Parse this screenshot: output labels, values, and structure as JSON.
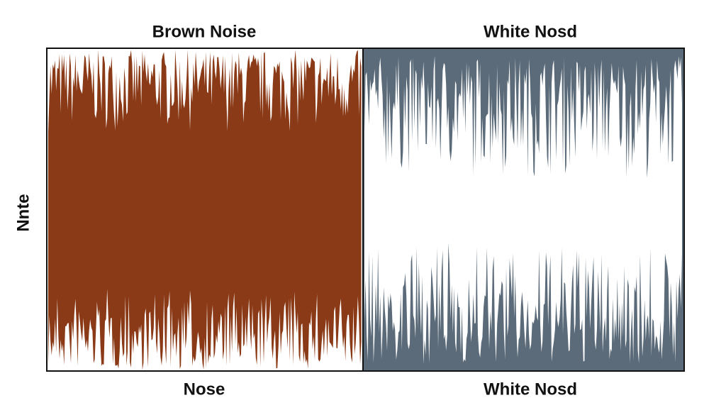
{
  "panels": [
    {
      "title": "Brown Noise",
      "caption": "Nose"
    },
    {
      "title": "White Nosd",
      "caption": "White Nosd"
    }
  ],
  "y_label": "Nnte"
}
